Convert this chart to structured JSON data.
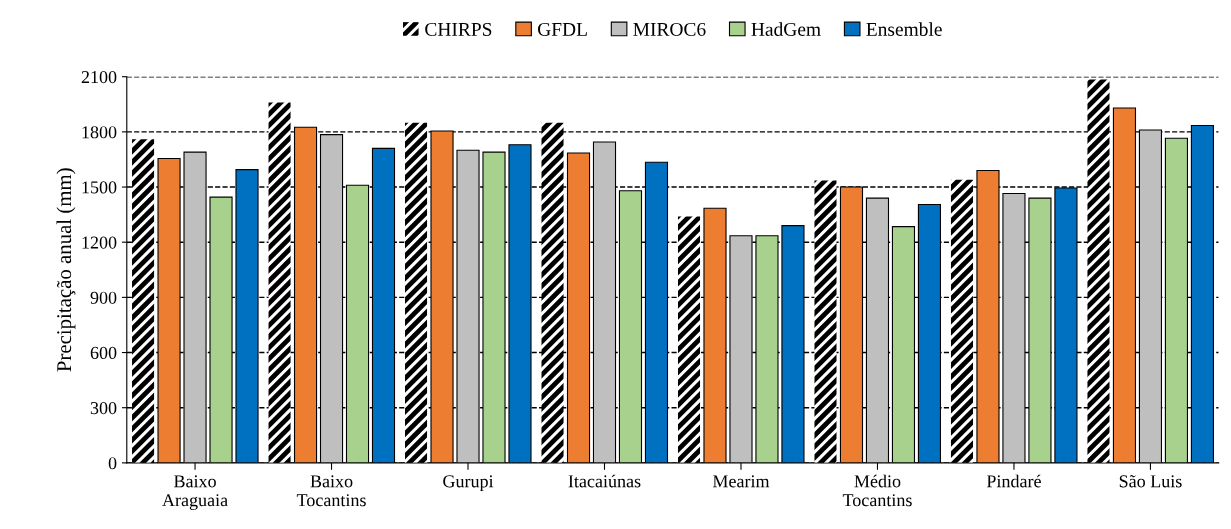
{
  "chart_data": {
    "type": "bar",
    "ylabel": "Precipitação anual (mm)",
    "categories": [
      "Baixo\nAraguaia",
      "Baixo\nTocantins",
      "Gurupi",
      "Itacaiúnas",
      "Mearim",
      "Médio\nTocantins",
      "Pindaré",
      "São Luis"
    ],
    "series": [
      {
        "name": "CHIRPS",
        "color": "#000000",
        "values": [
          1760,
          1960,
          1850,
          1850,
          1340,
          1535,
          1540,
          2085
        ]
      },
      {
        "name": "GFDL",
        "color": "#ed7d31",
        "values": [
          1655,
          1825,
          1805,
          1685,
          1385,
          1500,
          1590,
          1930
        ]
      },
      {
        "name": "MIROC6",
        "color": "#bfbfbf",
        "values": [
          1690,
          1785,
          1700,
          1745,
          1235,
          1440,
          1465,
          1810
        ]
      },
      {
        "name": "HadGem",
        "color": "#a9d18e",
        "values": [
          1445,
          1510,
          1690,
          1480,
          1235,
          1285,
          1440,
          1765
        ]
      },
      {
        "name": "Ensemble",
        "color": "#0070c0",
        "values": [
          1595,
          1710,
          1730,
          1635,
          1290,
          1405,
          1495,
          1835
        ]
      }
    ],
    "ylim": [
      0,
      2100
    ],
    "yticks": [
      0,
      300,
      600,
      900,
      1200,
      1500,
      1800,
      2100
    ],
    "grid": "y",
    "line_style": "dashed",
    "legend": "top"
  }
}
